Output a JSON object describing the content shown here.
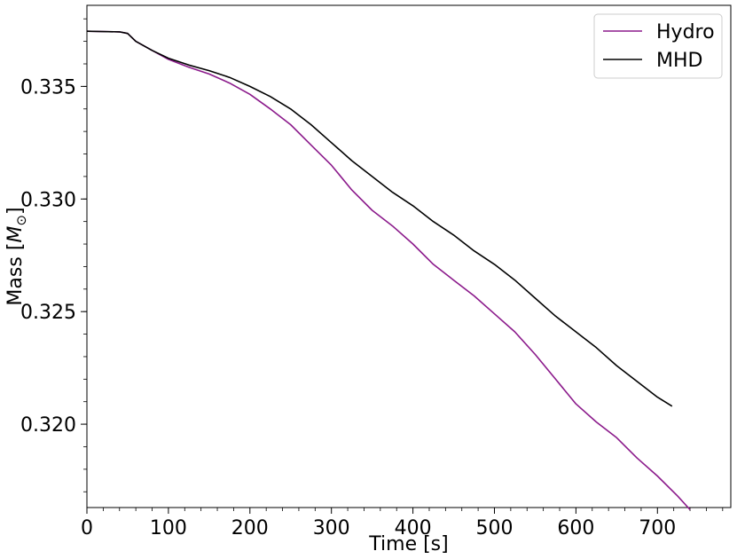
{
  "chart_data": {
    "type": "line",
    "xlabel": "Time [s]",
    "ylabel_text": "Mass [",
    "ylabel_symbol": "M",
    "ylabel_subscript": "⊙",
    "ylabel_close": "]",
    "xlim": [
      0,
      790
    ],
    "ylim": [
      0.3163,
      0.3386
    ],
    "x_ticks": [
      0,
      100,
      200,
      300,
      400,
      500,
      600,
      700
    ],
    "x_tick_labels": [
      "0",
      "100",
      "200",
      "300",
      "400",
      "500",
      "600",
      "700"
    ],
    "y_ticks": [
      0.32,
      0.325,
      0.33,
      0.335
    ],
    "y_tick_labels": [
      "0.320",
      "0.325",
      "0.330",
      "0.335"
    ],
    "legend_position": "top-right",
    "grid": false,
    "series": [
      {
        "name": "Hydro",
        "color": "#8b1a8b",
        "x": [
          0,
          40,
          50,
          60,
          80,
          100,
          125,
          150,
          175,
          200,
          225,
          250,
          275,
          300,
          325,
          350,
          375,
          400,
          425,
          450,
          475,
          500,
          525,
          550,
          575,
          600,
          625,
          650,
          675,
          700,
          725,
          740
        ],
        "y": [
          0.33745,
          0.33742,
          0.33735,
          0.337,
          0.3366,
          0.3362,
          0.33585,
          0.33555,
          0.33515,
          0.33465,
          0.334,
          0.3333,
          0.3324,
          0.3315,
          0.3304,
          0.3295,
          0.3288,
          0.328,
          0.3271,
          0.3264,
          0.3257,
          0.3249,
          0.3241,
          0.3231,
          0.322,
          0.3209,
          0.3201,
          0.3194,
          0.3185,
          0.3177,
          0.3168,
          0.3162
        ]
      },
      {
        "name": "MHD",
        "color": "#000000",
        "x": [
          0,
          40,
          50,
          60,
          80,
          100,
          125,
          150,
          175,
          200,
          225,
          250,
          275,
          300,
          325,
          350,
          375,
          400,
          425,
          450,
          475,
          500,
          525,
          550,
          575,
          600,
          625,
          650,
          675,
          700,
          718
        ],
        "y": [
          0.33745,
          0.33742,
          0.33735,
          0.337,
          0.3366,
          0.33625,
          0.33595,
          0.3357,
          0.3354,
          0.335,
          0.33455,
          0.334,
          0.3333,
          0.3325,
          0.3317,
          0.331,
          0.3303,
          0.3297,
          0.329,
          0.3284,
          0.3277,
          0.3271,
          0.3264,
          0.3256,
          0.3248,
          0.3241,
          0.3234,
          0.3226,
          0.3219,
          0.3212,
          0.3208
        ]
      }
    ]
  }
}
